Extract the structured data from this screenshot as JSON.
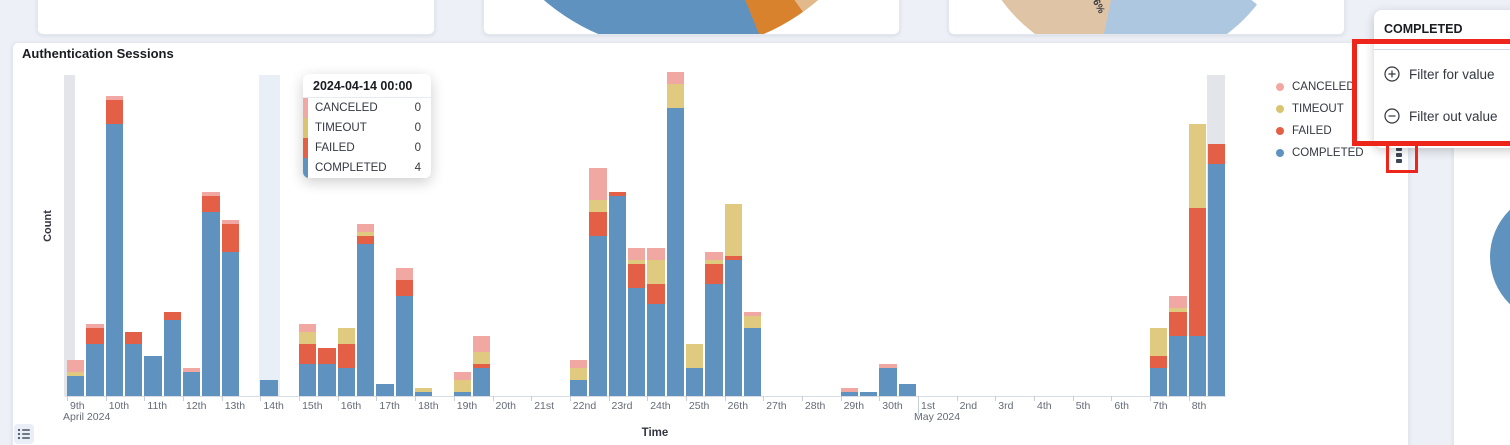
{
  "panel": {
    "title": "Authentication Sessions"
  },
  "axes": {
    "y_title": "Count",
    "x_title": "Time",
    "month_labels": [
      {
        "tick_index": 0,
        "label": "April 2024"
      },
      {
        "tick_index": 22,
        "label": "May 2024"
      }
    ]
  },
  "legend": {
    "position": "right",
    "items": [
      {
        "label": "CANCELED",
        "color": "#F2A8A2"
      },
      {
        "label": "TIMEOUT",
        "color": "#DBC46F"
      },
      {
        "label": "FAILED",
        "color": "#E35F46"
      },
      {
        "label": "COMPLETED",
        "color": "#6092C0"
      }
    ]
  },
  "tooltip": {
    "header": "2024-04-14 00:00",
    "rows": [
      {
        "label": "CANCELED",
        "value": "0",
        "color": "#F2A8A2"
      },
      {
        "label": "TIMEOUT",
        "value": "0",
        "color": "#DBC46F"
      },
      {
        "label": "FAILED",
        "value": "0",
        "color": "#E35F46"
      },
      {
        "label": "COMPLETED",
        "value": "4",
        "color": "#6092C0"
      }
    ]
  },
  "popover": {
    "title": "COMPLETED",
    "items": [
      {
        "label": "Filter for value",
        "icon": "plus-in-circle-icon"
      },
      {
        "label": "Filter out value",
        "icon": "minus-in-circle-icon"
      }
    ]
  },
  "annotations": {
    "highlight_color": "#EE251A",
    "boxes": [
      "around popover filter menu items",
      "around legend COMPLETED actions icon"
    ]
  },
  "colors": {
    "background": "#EDF0F6",
    "panel": "#FFFFFF",
    "hover_band": "#E9EFF7",
    "partial_bucket_band": "#E3E5EA",
    "axis_text": "#646A77"
  },
  "chart_data": [
    {
      "type": "bar",
      "stacked": true,
      "title": "Authentication Sessions",
      "xlabel": "Time",
      "ylabel": "Count",
      "x_bucket_interval": "12h",
      "x_range": [
        "2024-04-09 00:00",
        "2024-05-08 12:00"
      ],
      "x_tick_labels": [
        "9th",
        "10th",
        "11th",
        "12th",
        "13th",
        "14th",
        "15th",
        "16th",
        "17th",
        "18th",
        "19th",
        "20th",
        "21st",
        "22nd",
        "23rd",
        "24th",
        "25th",
        "26th",
        "27th",
        "28th",
        "29th",
        "30th",
        "1st",
        "2nd",
        "3rd",
        "4th",
        "5th",
        "6th",
        "7th",
        "8th"
      ],
      "ylim": [
        0,
        81
      ],
      "y_ticks_visible": false,
      "gridlines": false,
      "legend_position": "right",
      "hovered_bucket": {
        "x": "2024-04-14 00:00",
        "index": 10
      },
      "partial_bucket_bands": {
        "left": true,
        "right": true
      },
      "series": [
        {
          "name": "COMPLETED",
          "color": "#6092C0",
          "values": [
            5,
            13,
            68,
            13,
            10,
            19,
            6,
            46,
            36,
            0,
            4,
            0,
            8,
            8,
            7,
            38,
            3,
            25,
            1,
            0,
            1,
            7,
            0,
            0,
            0,
            0,
            4,
            40,
            50,
            27,
            23,
            72,
            7,
            28,
            34,
            17,
            0,
            0,
            0,
            0,
            1,
            1,
            7,
            3,
            0,
            0,
            0,
            0,
            0,
            0,
            0,
            0,
            0,
            0,
            0,
            0,
            7,
            15,
            15,
            58
          ]
        },
        {
          "name": "FAILED",
          "color": "#E35F46",
          "values": [
            0,
            4,
            6,
            3,
            0,
            2,
            0,
            4,
            7,
            0,
            0,
            0,
            5,
            4,
            6,
            2,
            0,
            4,
            0,
            0,
            0,
            1,
            0,
            0,
            0,
            0,
            0,
            6,
            1,
            6,
            5,
            0,
            0,
            5,
            1,
            0,
            0,
            0,
            0,
            0,
            0,
            0,
            0,
            0,
            0,
            0,
            0,
            0,
            0,
            0,
            0,
            0,
            0,
            0,
            0,
            0,
            3,
            6,
            32,
            5
          ]
        },
        {
          "name": "TIMEOUT",
          "color": "#DFCA80",
          "values": [
            1,
            0,
            0,
            0,
            0,
            0,
            0,
            0,
            0,
            0,
            0,
            0,
            3,
            0,
            4,
            1,
            0,
            0,
            1,
            0,
            3,
            3,
            0,
            0,
            0,
            0,
            3,
            3,
            0,
            1,
            6,
            6,
            6,
            1,
            13,
            3,
            0,
            0,
            0,
            0,
            0,
            0,
            0,
            0,
            0,
            0,
            0,
            0,
            0,
            0,
            0,
            0,
            0,
            0,
            0,
            0,
            7,
            1,
            21,
            0
          ]
        },
        {
          "name": "CANCELED",
          "color": "#F2A8A2",
          "values": [
            3,
            1,
            1,
            0,
            0,
            0,
            1,
            1,
            1,
            0,
            0,
            0,
            2,
            0,
            0,
            2,
            0,
            3,
            0,
            0,
            2,
            4,
            0,
            0,
            0,
            0,
            2,
            8,
            0,
            3,
            3,
            3,
            0,
            2,
            0,
            1,
            0,
            0,
            0,
            0,
            1,
            0,
            1,
            0,
            0,
            0,
            0,
            0,
            0,
            0,
            0,
            0,
            0,
            0,
            0,
            0,
            0,
            3,
            0,
            0
          ]
        }
      ]
    },
    {
      "type": "pie",
      "note": "top-middle panel donut, only bottom arc visible",
      "values_visible": false,
      "slices": [
        {
          "color": "#6092C0"
        },
        {
          "color": "#D9822E"
        },
        {
          "color": "#E2B98A"
        }
      ]
    },
    {
      "type": "pie",
      "note": "top-right panel donut, only bottom arc visible",
      "values_visible": false,
      "slice_label_fragment": "6%",
      "slices": [
        {
          "color": "#DFC5A5"
        },
        {
          "color": "#AEC7E1"
        }
      ]
    },
    {
      "type": "pie",
      "note": "right-edge panel donut, only left arc visible",
      "values_visible": false,
      "slices": [
        {
          "color": "#6092C0"
        }
      ]
    }
  ]
}
